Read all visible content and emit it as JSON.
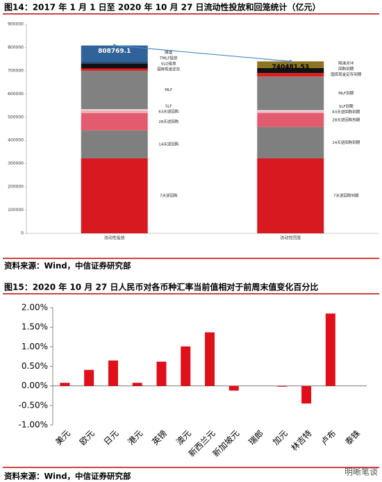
{
  "chart_data": [
    {
      "type": "stacked-bar",
      "title": "图14：2017 年 1 月 1 日至 2020 年 10 月 27 日流动性投放和回笼统计（亿元）",
      "source": "资料来源：Wind，中信证券研究部",
      "categories": [
        "流动性投放",
        "流动性回笼"
      ],
      "stacks": [
        {
          "segments": [
            {
              "name": "7天逆回购",
              "value": 323000,
              "color": "#d71a1f"
            },
            {
              "name": "14天逆回购",
              "value": 120000,
              "color": "#7f7f7f"
            },
            {
              "name": "28天逆回购",
              "value": 75000,
              "color": "#e35b6e"
            },
            {
              "name": "63天逆回购",
              "value": 12000,
              "color": "#f2aab4"
            },
            {
              "name": "SLF",
              "value": 4000,
              "color": "#f5f5f5"
            },
            {
              "name": "MLF",
              "value": 166000,
              "color": "#818181"
            },
            {
              "name": "国库现金定存",
              "value": 10000,
              "color": "#e21c1c"
            },
            {
              "name": "SLO投放",
              "value": 20000,
              "color": "#111111"
            },
            {
              "name": "TMLF投放",
              "value": 8000,
              "color": "#1f3a66"
            },
            {
              "name": "降准",
              "value": 70769.1,
              "color": "#2f6399"
            }
          ]
        },
        {
          "segments": [
            {
              "name": "7天逆回购到期",
              "value": 323000,
              "color": "#d71a1f"
            },
            {
              "name": "14天逆回购到期",
              "value": 135000,
              "color": "#7f7f7f"
            },
            {
              "name": "28天逆回购到期",
              "value": 60000,
              "color": "#e35b6e"
            },
            {
              "name": "63天逆回购到期",
              "value": 8000,
              "color": "#f2aab4"
            },
            {
              "name": "SLF到期",
              "value": 4000,
              "color": "#f5f5f5"
            },
            {
              "name": "MLF到期",
              "value": 145000,
              "color": "#818181"
            },
            {
              "name": "国库现金定存到期",
              "value": 15000,
              "color": "#e21c1c"
            },
            {
              "name": "回购到期",
              "value": 22000,
              "color": "#111111"
            },
            {
              "name": "降准对冲",
              "value": 28481.53,
              "color": "#8c7420"
            }
          ]
        }
      ],
      "totals": [
        808769.1,
        740481.53
      ],
      "total_line_color": "#4a86c8",
      "ylim": [
        0,
        900000
      ],
      "yticks": [
        0,
        100000,
        200000,
        300000,
        400000,
        500000,
        600000,
        700000,
        800000,
        900000
      ]
    },
    {
      "type": "bar",
      "title": "图15：2020 年 10 月 27 日人民币对各币种汇率当前值相对于前周末值变化百分比",
      "source": "资料来源：Wind，中信证券研究部",
      "categories": [
        "美元",
        "欧元",
        "日元",
        "港元",
        "英镑",
        "澳元",
        "新西兰元",
        "新加坡元",
        "瑞郎",
        "加元",
        "林吉特",
        "卢布",
        "泰铢"
      ],
      "values": [
        0.08,
        0.41,
        0.65,
        0.08,
        0.62,
        1.01,
        1.37,
        -0.12,
        0,
        -0.02,
        -0.45,
        1.85,
        0
      ],
      "color": "#e0101b",
      "ylim": [
        -1,
        2
      ],
      "yticks": [
        {
          "value": -1,
          "label": "-1.00%"
        },
        {
          "value": -0.5,
          "label": "-0.50%"
        },
        {
          "value": 0,
          "label": "0.00%"
        },
        {
          "value": 0.5,
          "label": "0.50%"
        },
        {
          "value": 1,
          "label": "1.00%"
        },
        {
          "value": 1.5,
          "label": "1.50%"
        },
        {
          "value": 2,
          "label": "2.00%"
        }
      ]
    }
  ],
  "watermark": "明晰笔谈"
}
